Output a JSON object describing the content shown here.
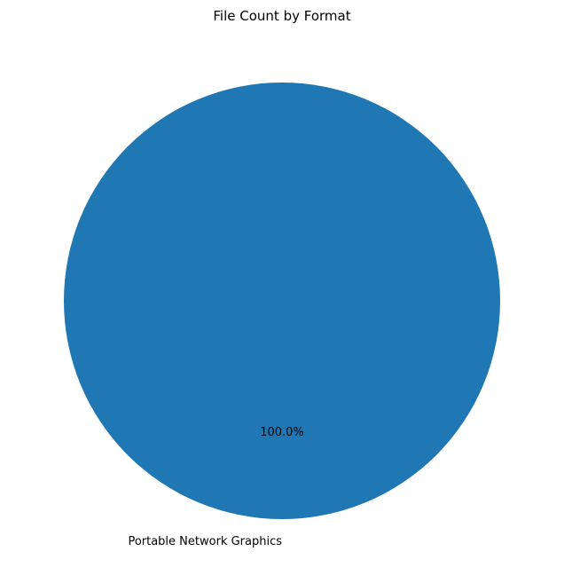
{
  "chart_data": {
    "type": "pie",
    "title": "File Count by Format",
    "slices": [
      {
        "label": "Portable Network Graphics",
        "value": 100.0,
        "percent_label": "100.0%",
        "color": "#1f77b4"
      }
    ]
  }
}
